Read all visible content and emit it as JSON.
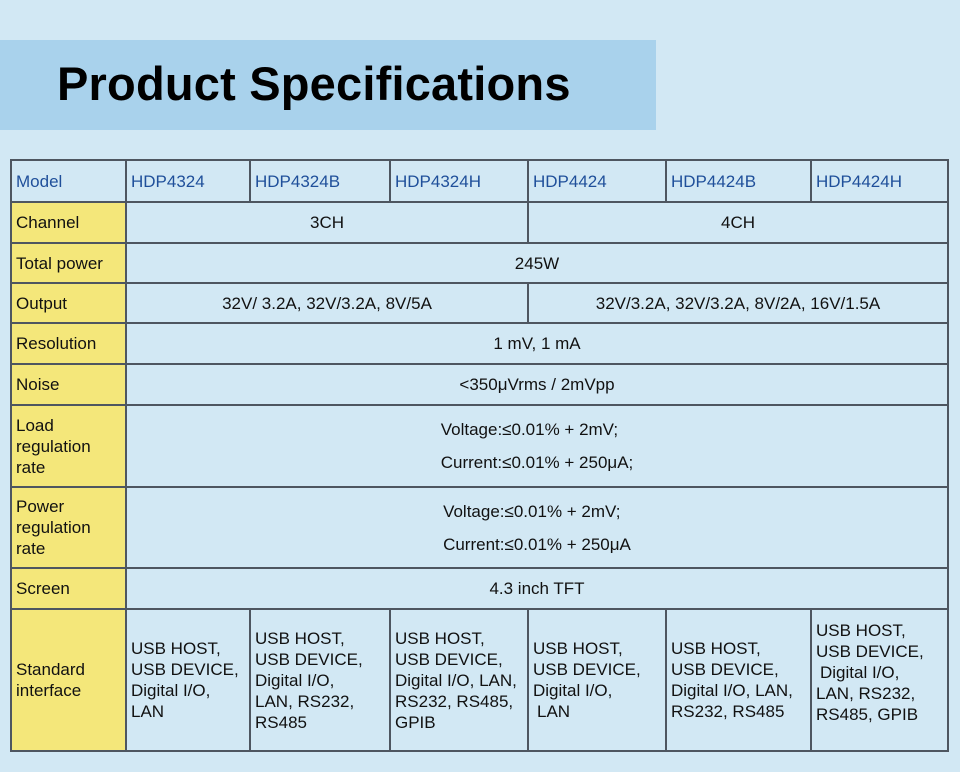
{
  "title": "Product Specifications",
  "table": {
    "model": {
      "label": "Model",
      "values": [
        "HDP4324",
        "HDP4324B",
        "HDP4324H",
        "HDP4424",
        "HDP4424B",
        "HDP4424H"
      ]
    },
    "channel": {
      "label": "Channel",
      "group_3": "3CH",
      "group_4": "4CH"
    },
    "total_power": {
      "label": "Total power",
      "value": "245W"
    },
    "output": {
      "label": "Output",
      "group_3": "32V/ 3.2A, 32V/3.2A, 8V/5A",
      "group_4": "32V/3.2A, 32V/3.2A, 8V/2A, 16V/1.5A"
    },
    "resolution": {
      "label": "Resolution",
      "value": "1 mV, 1 mA"
    },
    "noise": {
      "label": "Noise",
      "value": "<350μVrms / 2mVpp"
    },
    "load_regulation": {
      "label": "Load regulation rate",
      "voltage": "Voltage:≤0.01% + 2mV;",
      "current": "Current:≤0.01% + 250μA;"
    },
    "power_regulation": {
      "label": "Power regulation rate",
      "voltage": "Voltage:≤0.01% + 2mV;",
      "current": "Current:≤0.01% + 250μA"
    },
    "screen": {
      "label": "Screen",
      "value": "4.3 inch TFT"
    },
    "standard_interface": {
      "label": "Standard interface",
      "values": [
        [
          "USB HOST,",
          "USB DEVICE,",
          "Digital I/O,",
          "LAN"
        ],
        [
          "USB HOST,",
          "USB DEVICE,",
          "Digital I/O,",
          "LAN, RS232,",
          "RS485"
        ],
        [
          "USB HOST,",
          "USB DEVICE,",
          "Digital I/O, LAN,",
          "RS232, RS485,",
          "GPIB"
        ],
        [
          "USB HOST,",
          "USB DEVICE,",
          "Digital I/O,",
          "LAN"
        ],
        [
          "USB HOST,",
          "USB DEVICE,",
          "Digital I/O, LAN,",
          "RS232, RS485"
        ],
        [
          "USB HOST,",
          "USB DEVICE,",
          "Digital I/O,",
          "LAN, RS232,",
          "RS485, GPIB"
        ]
      ]
    }
  }
}
